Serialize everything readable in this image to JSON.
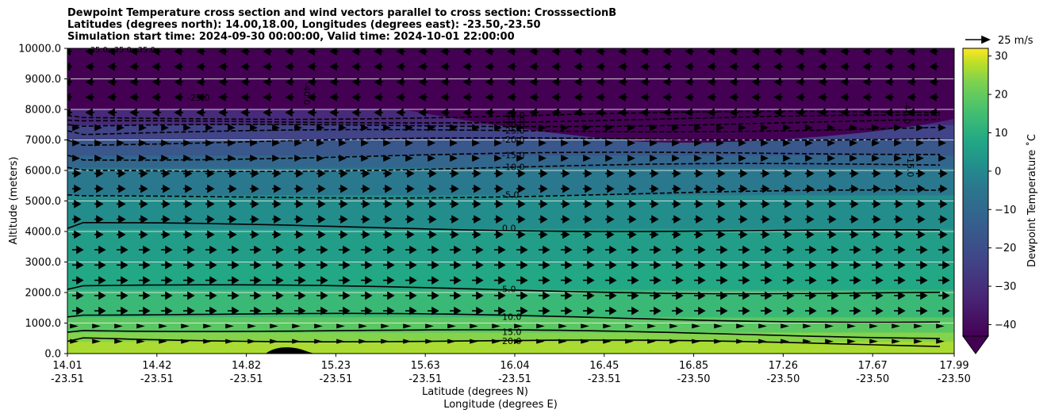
{
  "chart_data": {
    "type": "contour",
    "title": {
      "line1": "Dewpoint Temperature cross section and wind vectors parallel to cross section: CrosssectionB",
      "line2": "Latitudes (degrees north): 14.00,18.00, Longitudes (degrees east): -23.50,-23.50",
      "line3": "Simulation start time: 2024-09-30 00:00:00, Valid time: 2024-10-01 22:00:00"
    },
    "ylabel": "Altitude (meters)",
    "xlabel_lat": "Latitude (degrees N)",
    "xlabel_lon": "Longitude (degrees E)",
    "ylim": [
      0,
      10000
    ],
    "xlim": [
      14.01,
      17.99
    ],
    "yticks": [
      "0.0",
      "1000.0",
      "2000.0",
      "3000.0",
      "4000.0",
      "5000.0",
      "6000.0",
      "7000.0",
      "8000.0",
      "9000.0",
      "10000.0"
    ],
    "xticks_lat": [
      "14.01",
      "14.42",
      "14.82",
      "15.23",
      "15.63",
      "16.04",
      "16.45",
      "16.85",
      "17.26",
      "17.67",
      "17.99"
    ],
    "xticks_lon": [
      "-23.51",
      "-23.51",
      "-23.51",
      "-23.51",
      "-23.51",
      "-23.51",
      "-23.51",
      "-23.50",
      "-23.50",
      "-23.50",
      "-23.50"
    ],
    "colorbar": {
      "label": "Dewpoint Temperature ˚C",
      "ticks": [
        "30",
        "20",
        "10",
        "0",
        "−10",
        "−20",
        "−30",
        "−40"
      ],
      "range": [
        -43,
        32
      ],
      "extend": "min"
    },
    "quiver_key": {
      "label": "25 m/s"
    },
    "contour_labels": [
      "-40.0",
      "-35.0",
      "-30.0",
      "-25.0",
      "-20.0",
      "-15.0",
      "-10.0",
      "-5.0",
      "0.0",
      "5.0",
      "10.0",
      "15.0",
      "20.0"
    ],
    "extra_labels": {
      "top_left": [
        "-35.0",
        "-35.0",
        "-35.0"
      ],
      "left_25": "-25.0",
      "left_40": "-40.0",
      "right_40": "-40.0",
      "right_15": "-15.0"
    },
    "contour_levels_altitude_m": {
      "20.0": 400,
      "15.0": 700,
      "10.0": 1200,
      "5.0": 2100,
      "0.0": 4100,
      "-5.0": 5200,
      "-10.0": 6100,
      "-15.0": 6500,
      "-20.0": 7000,
      "-25.0": 7300,
      "-30.0": 7500,
      "-35.0": 7650,
      "-40.0": 7800
    },
    "grid": "horizontal",
    "colors": {
      "viridis_dark": "#440154",
      "viridis_mid": "#21918c",
      "viridis_yellow": "#fde725"
    }
  }
}
